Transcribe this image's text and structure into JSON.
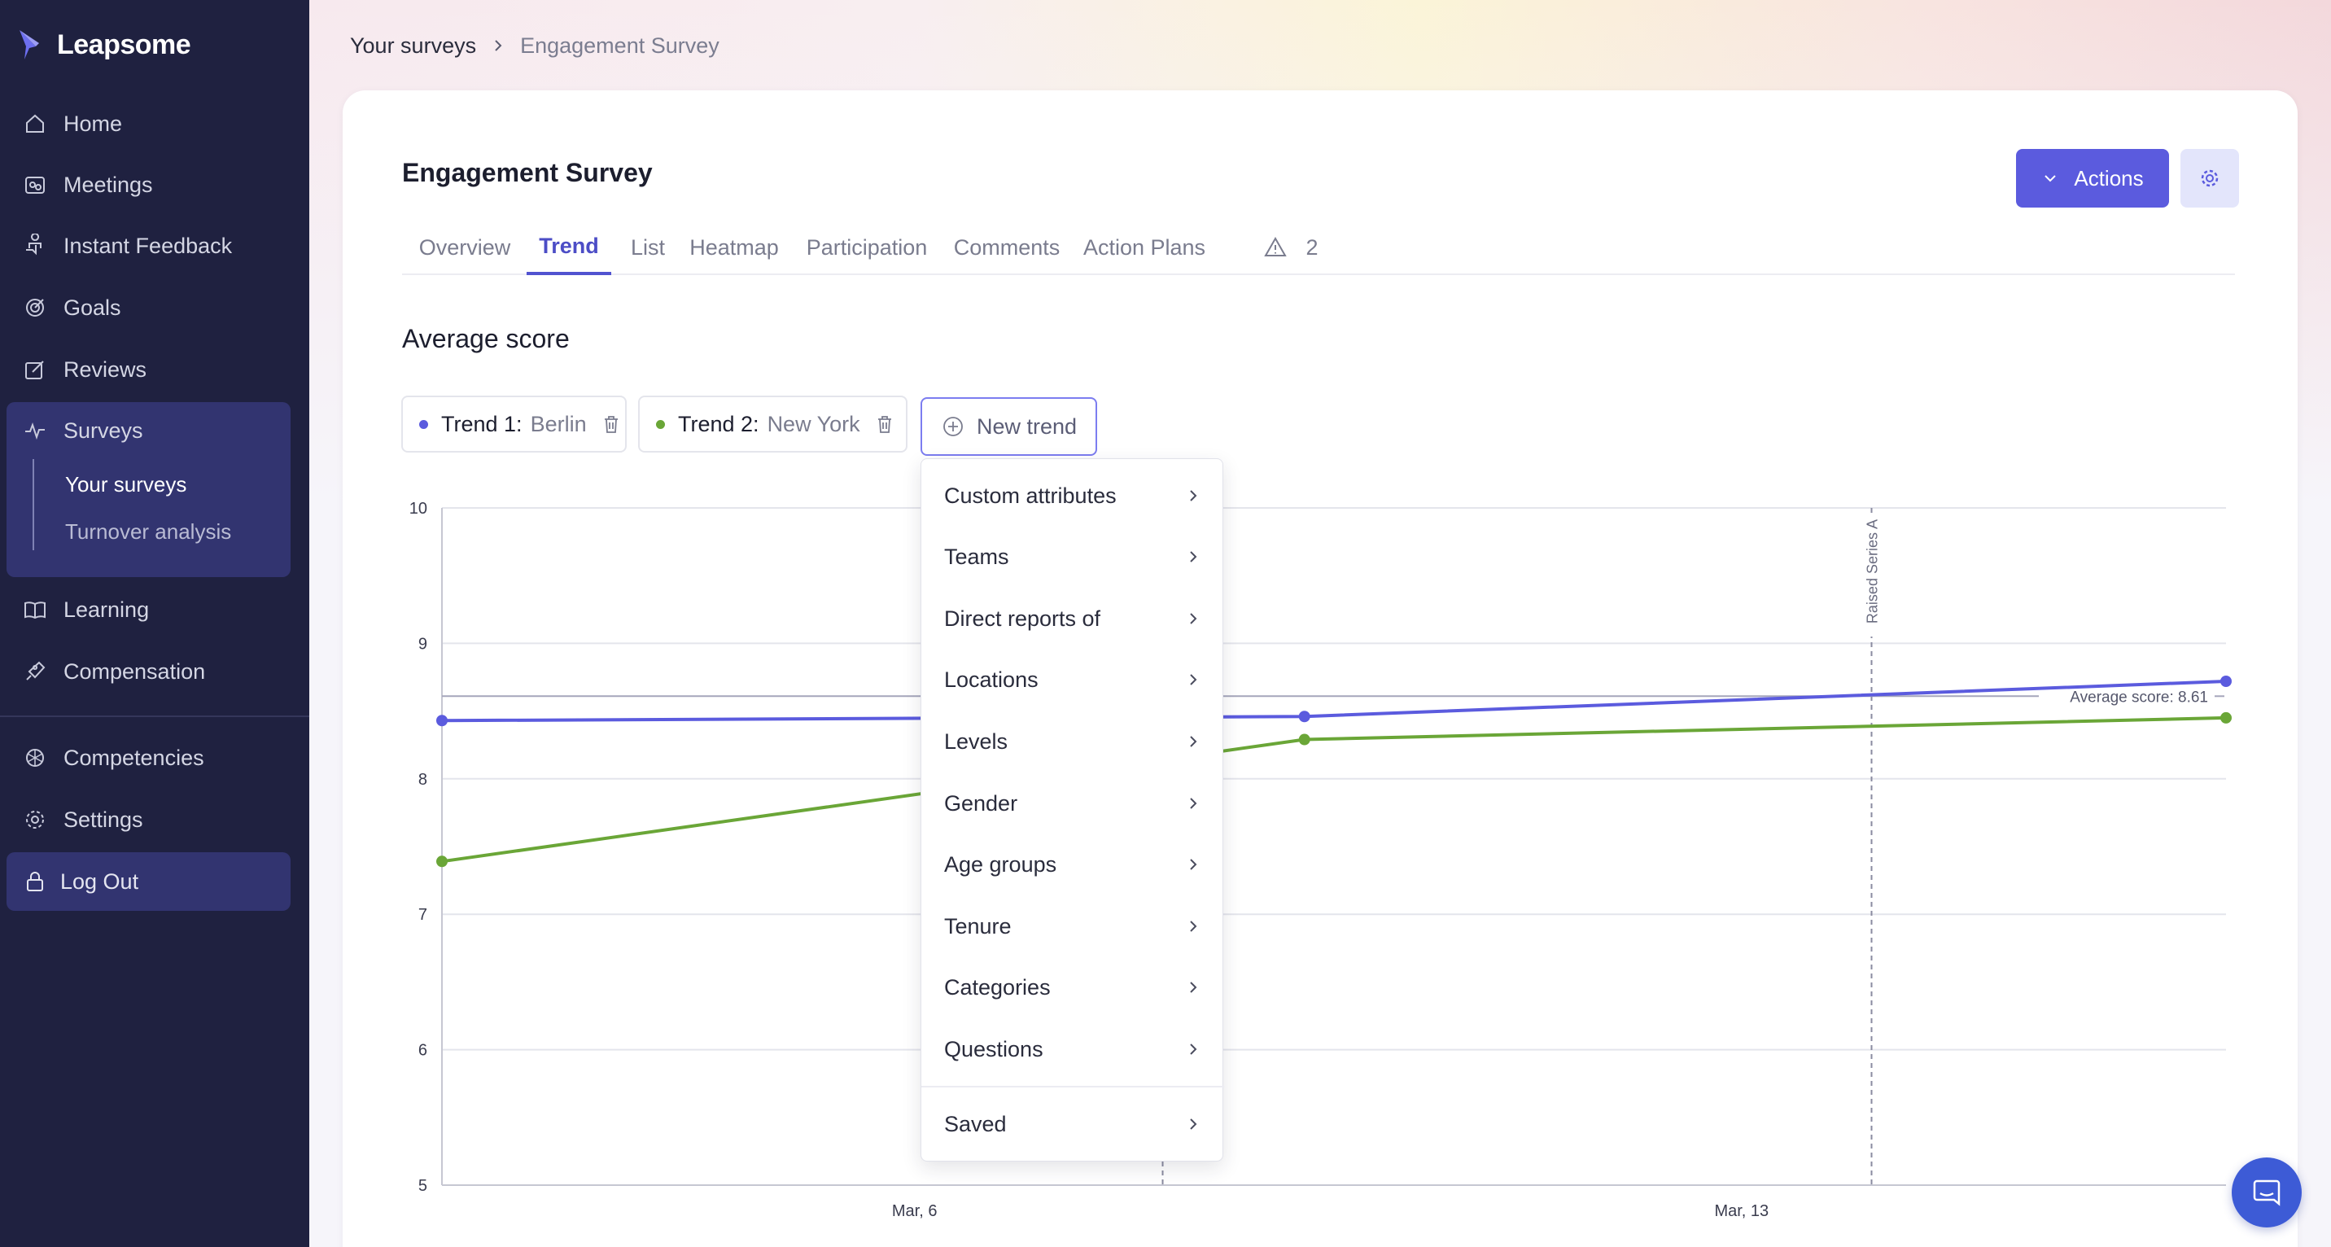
{
  "app": {
    "name": "Leapsome"
  },
  "sidebar": {
    "items": [
      {
        "label": "Home",
        "icon": "home-icon"
      },
      {
        "label": "Meetings",
        "icon": "meetings-icon"
      },
      {
        "label": "Instant Feedback",
        "icon": "feedback-icon"
      },
      {
        "label": "Goals",
        "icon": "goals-icon"
      },
      {
        "label": "Reviews",
        "icon": "reviews-icon"
      },
      {
        "label": "Surveys",
        "icon": "surveys-icon"
      },
      {
        "label": "Learning",
        "icon": "learning-icon"
      },
      {
        "label": "Compensation",
        "icon": "compensation-icon"
      },
      {
        "label": "Competencies",
        "icon": "competencies-icon"
      },
      {
        "label": "Settings",
        "icon": "settings-icon"
      }
    ],
    "sub_items": [
      "Your surveys",
      "Turnover analysis"
    ],
    "logout_label": "Log Out"
  },
  "breadcrumb": {
    "parent": "Your surveys",
    "current": "Engagement Survey"
  },
  "page": {
    "title": "Engagement Survey",
    "actions_label": "Actions",
    "section_title": "Average score"
  },
  "tabs": [
    "Overview",
    "Trend",
    "List",
    "Heatmap",
    "Participation",
    "Comments",
    "Action Plans"
  ],
  "alert_count": "2",
  "trends": [
    {
      "label": "Trend 1:",
      "value": "Berlin",
      "color": "#5b5bde"
    },
    {
      "label": "Trend 2:",
      "value": "New York",
      "color": "#6aa637"
    }
  ],
  "new_trend_label": "New trend",
  "dropdown": {
    "items": [
      "Custom attributes",
      "Teams",
      "Direct reports of",
      "Locations",
      "Levels",
      "Gender",
      "Age groups",
      "Tenure",
      "Categories",
      "Questions"
    ],
    "saved_label": "Saved"
  },
  "chart_data": {
    "type": "line",
    "title": "Average score",
    "ylim": [
      5,
      10
    ],
    "yticks": [
      "10",
      "9",
      "8",
      "7",
      "6",
      "5"
    ],
    "xlim": [
      2,
      17.1
    ],
    "xticks": [
      {
        "x": 6,
        "label": "Mar, 6"
      },
      {
        "x": 13,
        "label": "Mar, 13"
      }
    ],
    "series": [
      {
        "name": "Berlin",
        "color": "#5b5bde",
        "x": [
          2,
          9.3,
          17.1
        ],
        "y": [
          8.43,
          8.46,
          8.72
        ]
      },
      {
        "name": "New York",
        "color": "#6aa637",
        "x": [
          2,
          9.3,
          17.1
        ],
        "y": [
          7.39,
          8.29,
          8.45
        ]
      }
    ],
    "average": {
      "value": 8.61,
      "label": "Average score: 8.61"
    },
    "annotations": [
      {
        "x": 8.1,
        "label": ""
      },
      {
        "x": 14.1,
        "label": "Raised Series A"
      }
    ],
    "colors": {
      "grid": "#e4e5ec",
      "axis": "#c6c7d2",
      "average": "#a5a6bb",
      "marker": "#8a8ba0"
    }
  }
}
